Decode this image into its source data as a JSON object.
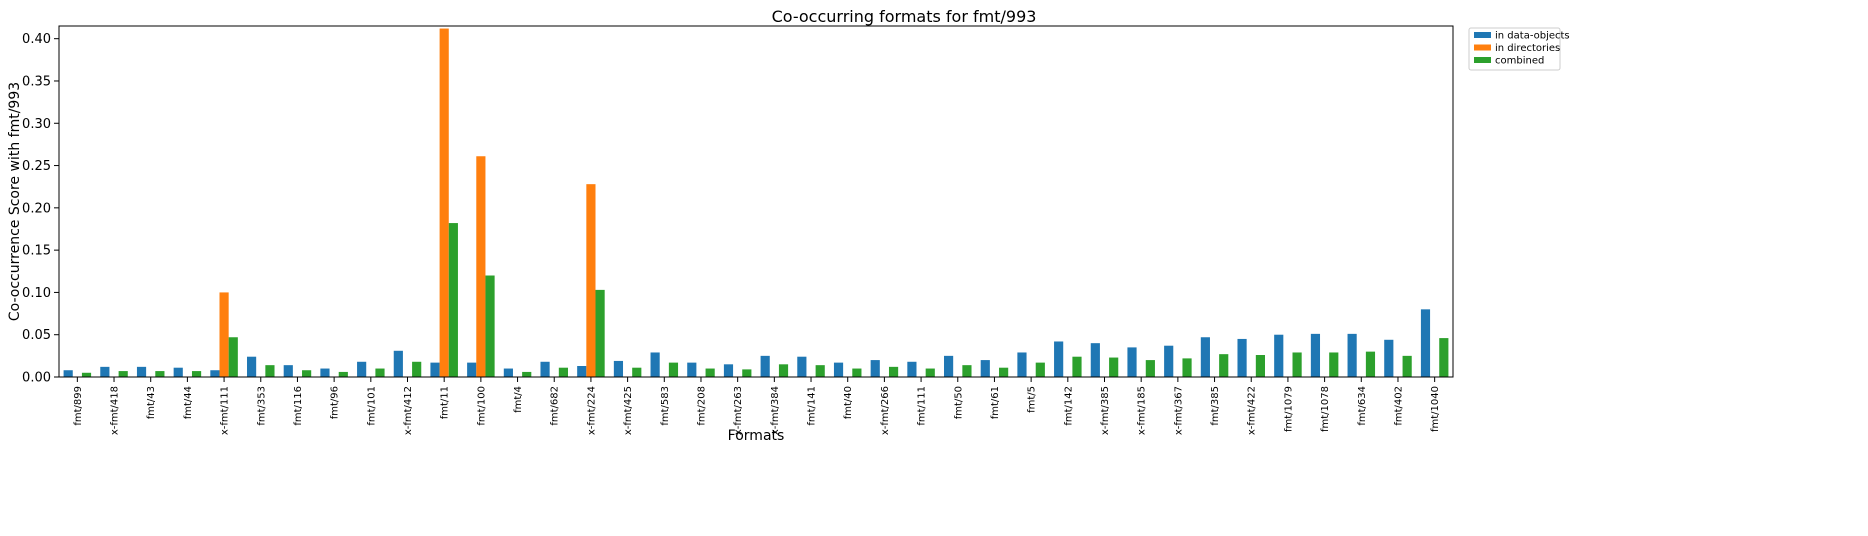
{
  "chart_data": {
    "type": "bar",
    "title": "Co-occurring formats for fmt/993",
    "xlabel": "Formats",
    "ylabel": "Co-occurrence Score with fmt/993",
    "ylim": [
      0,
      0.415
    ],
    "yticks": [
      0.0,
      0.05,
      0.1,
      0.15,
      0.2,
      0.25,
      0.3,
      0.35,
      0.4
    ],
    "ytick_labels": [
      "0.00",
      "0.05",
      "0.10",
      "0.15",
      "0.20",
      "0.25",
      "0.30",
      "0.35",
      "0.40"
    ],
    "grid": false,
    "legend_position": "outside-top-right",
    "categories": [
      "fmt/899",
      "x-fmt/418",
      "fmt/43",
      "fmt/44",
      "x-fmt/111",
      "fmt/353",
      "fmt/116",
      "fmt/96",
      "fmt/101",
      "x-fmt/412",
      "fmt/11",
      "fmt/100",
      "fmt/4",
      "fmt/682",
      "x-fmt/224",
      "x-fmt/425",
      "fmt/583",
      "fmt/208",
      "x-fmt/263",
      "x-fmt/384",
      "fmt/141",
      "fmt/40",
      "x-fmt/266",
      "fmt/111",
      "fmt/50",
      "fmt/61",
      "fmt/5",
      "fmt/142",
      "x-fmt/385",
      "x-fmt/185",
      "x-fmt/367",
      "fmt/385",
      "x-fmt/422",
      "fmt/1079",
      "fmt/1078",
      "fmt/634",
      "fmt/402",
      "fmt/1040"
    ],
    "series": [
      {
        "name": "in data-objects",
        "color": "#1f77b4",
        "values": [
          0.008,
          0.012,
          0.012,
          0.011,
          0.008,
          0.024,
          0.014,
          0.01,
          0.018,
          0.031,
          0.017,
          0.017,
          0.01,
          0.018,
          0.013,
          0.019,
          0.029,
          0.017,
          0.015,
          0.025,
          0.024,
          0.017,
          0.02,
          0.018,
          0.025,
          0.02,
          0.029,
          0.042,
          0.04,
          0.035,
          0.037,
          0.047,
          0.045,
          0.05,
          0.051,
          0.051,
          0.044,
          0.08
        ]
      },
      {
        "name": "in directories",
        "color": "#ff7f0e",
        "values": [
          0,
          0,
          0,
          0,
          0.1,
          0,
          0,
          0,
          0,
          0,
          0.412,
          0.261,
          0,
          0,
          0.228,
          0,
          0,
          0,
          0,
          0,
          0,
          0,
          0,
          0,
          0,
          0,
          0,
          0,
          0,
          0,
          0,
          0,
          0,
          0,
          0,
          0,
          0,
          0
        ]
      },
      {
        "name": "combined",
        "color": "#2ca02c",
        "values": [
          0.005,
          0.007,
          0.007,
          0.007,
          0.047,
          0.014,
          0.008,
          0.006,
          0.01,
          0.018,
          0.182,
          0.12,
          0.006,
          0.011,
          0.103,
          0.011,
          0.017,
          0.01,
          0.009,
          0.015,
          0.014,
          0.01,
          0.012,
          0.01,
          0.014,
          0.011,
          0.017,
          0.024,
          0.023,
          0.02,
          0.022,
          0.027,
          0.026,
          0.029,
          0.029,
          0.03,
          0.025,
          0.046
        ]
      }
    ]
  }
}
